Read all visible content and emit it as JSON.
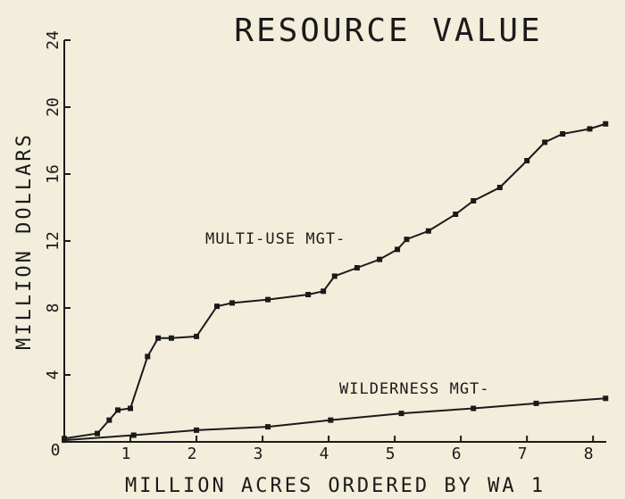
{
  "chart_data": {
    "type": "line",
    "title": "RESOURCE VALUE",
    "x_label": "MILLION ACRES ORDERED BY WA 1",
    "y_label": "MILLION DOLLARS",
    "xlim": [
      0,
      8.2
    ],
    "xticks": [
      0,
      1,
      2,
      3,
      4,
      5,
      6,
      7,
      8
    ],
    "ylim": [
      0,
      24
    ],
    "yticks": [
      0,
      4,
      8,
      12,
      16,
      20,
      24
    ],
    "series": [
      {
        "name": "MULTI-USE MGT-",
        "color": "#1a1a1a",
        "x": [
          0,
          0.5,
          0.68,
          0.81,
          1.0,
          1.26,
          1.42,
          1.62,
          2.0,
          2.31,
          2.54,
          3.08,
          3.69,
          3.92,
          4.09,
          4.43,
          4.77,
          5.04,
          5.18,
          5.51,
          5.92,
          6.19,
          6.59,
          7.0,
          7.27,
          7.54,
          7.95,
          8.19
        ],
        "values": [
          0.2,
          0.5,
          1.3,
          1.9,
          2.0,
          5.1,
          6.2,
          6.2,
          6.3,
          8.1,
          8.3,
          8.5,
          8.8,
          9.0,
          9.9,
          10.4,
          10.9,
          11.5,
          12.1,
          12.6,
          13.6,
          14.4,
          15.2,
          16.8,
          17.9,
          18.4,
          18.7,
          19.0
        ]
      },
      {
        "name": "WILDERNESS MGT-",
        "color": "#1a1a1a",
        "x": [
          0,
          1.05,
          2.0,
          3.08,
          4.03,
          5.1,
          6.19,
          7.14,
          8.19
        ],
        "values": [
          0.1,
          0.4,
          0.7,
          0.9,
          1.3,
          1.7,
          2.0,
          2.3,
          2.6
        ]
      }
    ]
  }
}
